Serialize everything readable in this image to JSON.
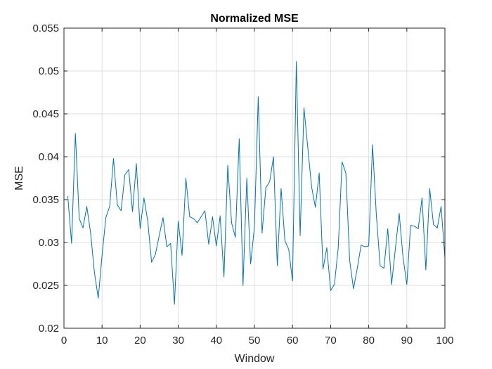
{
  "chart_data": {
    "type": "line",
    "title": "Normalized MSE",
    "xlabel": "Window",
    "ylabel": "MSE",
    "xlim": [
      0,
      100
    ],
    "ylim": [
      0.02,
      0.055
    ],
    "grid": true,
    "xticks": [
      0,
      10,
      20,
      30,
      40,
      50,
      60,
      70,
      80,
      90,
      100
    ],
    "xtick_labels": [
      "0",
      "10",
      "20",
      "30",
      "40",
      "50",
      "60",
      "70",
      "80",
      "90",
      "100"
    ],
    "yticks": [
      0.02,
      0.025,
      0.03,
      0.035,
      0.04,
      0.045,
      0.05,
      0.055
    ],
    "ytick_labels": [
      "0.02",
      "0.025",
      "0.03",
      "0.035",
      "0.04",
      "0.045",
      "0.05",
      "0.055"
    ],
    "series": [
      {
        "color": "#0072BD",
        "x": [
          1,
          2,
          3,
          4,
          5,
          6,
          7,
          8,
          9,
          10,
          11,
          12,
          13,
          14,
          15,
          16,
          17,
          18,
          19,
          20,
          21,
          22,
          23,
          24,
          25,
          26,
          27,
          28,
          29,
          30,
          31,
          32,
          33,
          34,
          35,
          36,
          37,
          38,
          39,
          40,
          41,
          42,
          43,
          44,
          45,
          46,
          47,
          48,
          49,
          50,
          51,
          52,
          53,
          54,
          55,
          56,
          57,
          58,
          59,
          60,
          61,
          62,
          63,
          64,
          65,
          66,
          67,
          68,
          69,
          70,
          71,
          72,
          73,
          74,
          75,
          76,
          77,
          78,
          79,
          80,
          81,
          82,
          83,
          84,
          85,
          86,
          87,
          88,
          89,
          90,
          91,
          92,
          93,
          94,
          95,
          96,
          97,
          98,
          99,
          100
        ],
        "values": [
          0.0354,
          0.0299,
          0.0427,
          0.0328,
          0.0317,
          0.0342,
          0.0311,
          0.0265,
          0.0235,
          0.0285,
          0.0329,
          0.0342,
          0.0398,
          0.0344,
          0.0337,
          0.0379,
          0.0385,
          0.0336,
          0.0392,
          0.0316,
          0.0352,
          0.0325,
          0.0277,
          0.0286,
          0.0308,
          0.0329,
          0.0295,
          0.0299,
          0.0228,
          0.0325,
          0.0285,
          0.0375,
          0.033,
          0.0328,
          0.0323,
          0.033,
          0.0337,
          0.0298,
          0.033,
          0.0296,
          0.0331,
          0.026,
          0.039,
          0.0323,
          0.0306,
          0.0421,
          0.025,
          0.0375,
          0.0275,
          0.0318,
          0.047,
          0.0311,
          0.0364,
          0.0371,
          0.04,
          0.0273,
          0.0363,
          0.0302,
          0.0292,
          0.0255,
          0.0511,
          0.0308,
          0.0457,
          0.0411,
          0.0365,
          0.0341,
          0.0381,
          0.0269,
          0.0294,
          0.0244,
          0.0251,
          0.0294,
          0.0394,
          0.0381,
          0.0279,
          0.0246,
          0.027,
          0.0297,
          0.0295,
          0.0296,
          0.0414,
          0.0332,
          0.0273,
          0.027,
          0.0316,
          0.0251,
          0.0293,
          0.0334,
          0.0283,
          0.0251,
          0.032,
          0.0319,
          0.0316,
          0.0352,
          0.0268,
          0.0363,
          0.0321,
          0.0317,
          0.0342,
          0.0282
        ]
      }
    ]
  }
}
